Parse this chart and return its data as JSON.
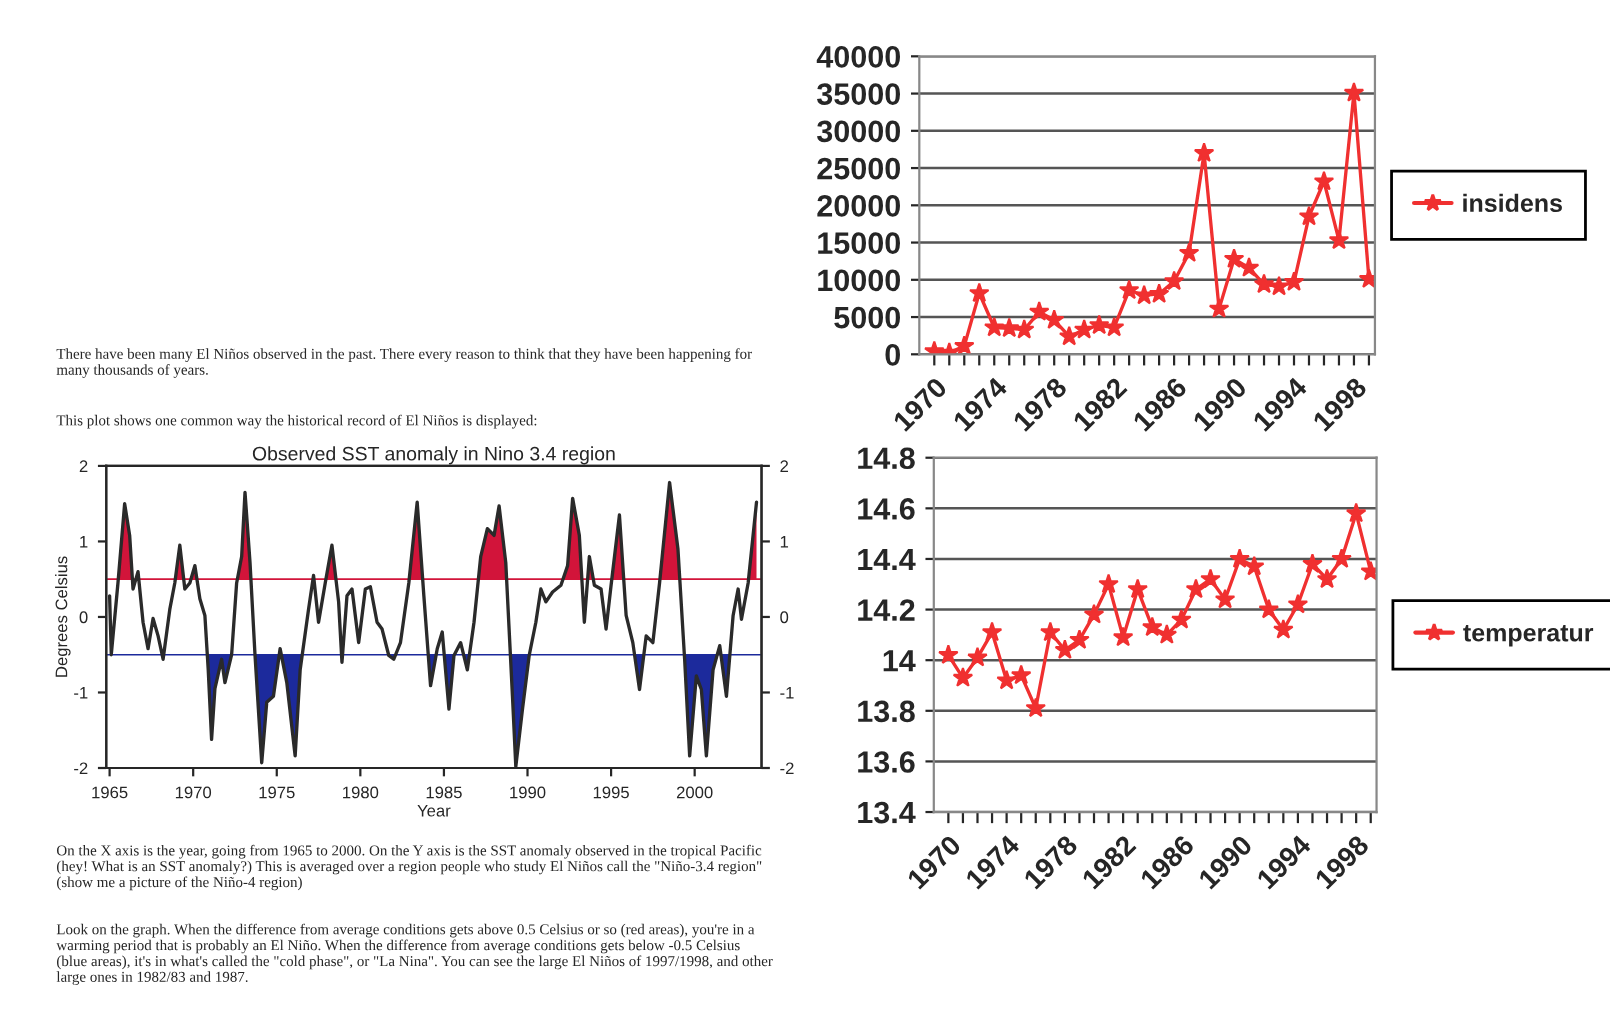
{
  "chart_data": [
    {
      "type": "line",
      "title": "Observed SST anomaly in Nino 3.4 region",
      "xlabel": "Year",
      "ylabel": "Degrees Celsius",
      "x": [
        1965.0,
        1965.1,
        1965.5,
        1965.9,
        1966.2,
        1966.4,
        1966.7,
        1967.0,
        1967.3,
        1967.6,
        1967.9,
        1968.2,
        1968.6,
        1968.9,
        1969.2,
        1969.5,
        1969.8,
        1970.1,
        1970.4,
        1970.7,
        1970.9,
        1971.1,
        1971.3,
        1971.7,
        1971.9,
        1972.3,
        1972.6,
        1972.9,
        1973.1,
        1973.4,
        1973.7,
        1974.1,
        1974.4,
        1974.8,
        1975.2,
        1975.6,
        1976.1,
        1976.4,
        1976.9,
        1977.2,
        1977.5,
        1977.9,
        1978.3,
        1978.7,
        1978.9,
        1979.2,
        1979.5,
        1979.9,
        1980.3,
        1980.6,
        1981.0,
        1981.3,
        1981.7,
        1982.0,
        1982.4,
        1982.9,
        1983.4,
        1983.8,
        1984.2,
        1984.6,
        1984.9,
        1985.3,
        1985.6,
        1986.0,
        1986.4,
        1986.8,
        1987.2,
        1987.6,
        1988.0,
        1988.3,
        1988.7,
        1989.1,
        1989.3,
        1989.7,
        1990.1,
        1990.5,
        1990.8,
        1991.1,
        1991.5,
        1992.0,
        1992.4,
        1992.7,
        1993.1,
        1993.4,
        1993.7,
        1994.0,
        1994.4,
        1994.7,
        1995.0,
        1995.5,
        1995.9,
        1996.3,
        1996.7,
        1997.1,
        1997.5,
        1997.9,
        1998.5,
        1999.0,
        1999.4,
        1999.7,
        2000.1,
        2000.4,
        2000.7,
        2001.1,
        2001.5,
        2001.9,
        2002.3,
        2002.6,
        2002.8,
        2003.2,
        2003.7
      ],
      "series": [
        {
          "color": "#2a2a2a",
          "values": [
            0.28,
            -0.5,
            0.45,
            1.5,
            1.08,
            0.37,
            0.6,
            -0.07,
            -0.42,
            -0.02,
            -0.25,
            -0.56,
            0.1,
            0.45,
            0.95,
            0.37,
            0.45,
            0.68,
            0.24,
            0.02,
            -0.7,
            -1.62,
            -0.95,
            -0.56,
            -0.87,
            -0.5,
            0.45,
            0.8,
            1.65,
            0.72,
            -0.51,
            -1.93,
            -1.13,
            -1.05,
            -0.42,
            -0.87,
            -1.84,
            -0.7,
            0.1,
            0.55,
            -0.07,
            0.45,
            0.95,
            0.2,
            -0.6,
            0.28,
            0.37,
            -0.34,
            0.37,
            0.4,
            -0.07,
            -0.16,
            -0.51,
            -0.56,
            -0.34,
            0.45,
            1.52,
            0.28,
            -0.91,
            -0.42,
            -0.2,
            -1.22,
            -0.51,
            -0.34,
            -0.7,
            -0.07,
            0.8,
            1.17,
            1.08,
            1.47,
            0.72,
            -1.05,
            -1.98,
            -1.22,
            -0.51,
            -0.07,
            0.37,
            0.2,
            0.33,
            0.42,
            0.68,
            1.57,
            1.08,
            -0.07,
            0.8,
            0.42,
            0.37,
            -0.16,
            0.42,
            1.35,
            0.02,
            -0.34,
            -0.96,
            -0.25,
            -0.34,
            0.45,
            1.78,
            0.9,
            -0.56,
            -1.84,
            -0.78,
            -0.96,
            -1.84,
            -0.7,
            -0.38,
            -1.05,
            0.02,
            0.37,
            -0.03,
            0.45,
            1.52
          ]
        }
      ],
      "xlim": [
        1964.8,
        2004
      ],
      "xticks": [
        1965,
        1970,
        1975,
        1980,
        1985,
        1990,
        1995,
        2000
      ],
      "ylim": [
        -2,
        2
      ],
      "yticks": [
        -2,
        -1,
        0,
        1,
        2
      ],
      "y2lim": [
        -2,
        2
      ],
      "y2ticks": [
        -2,
        -1,
        0,
        1,
        2
      ],
      "ref_lines": [
        {
          "axis": "y",
          "value": 0.5,
          "color": "#d2143a"
        },
        {
          "axis": "y",
          "value": -0.5,
          "color": "#1c2a9c"
        }
      ],
      "annotations": [
        "There have been many El Niños observed in the past. There every reason to think that they have been happening for many thousands of years.",
        "This plot shows one common way the historical record of El Niños is displayed:",
        "On the X axis is the year, going from 1965 to 2000. On the Y axis is the SST anomaly observed in the tropical Pacific (hey! What is an SST anomaly?) This is averaged over a region people who study El Niños call the \"Niño-3.4 region\" (show me a picture of the Niño-4 region)",
        "Look on the graph. When the difference from average conditions gets above 0.5 Celsius or so (red areas), you're in a warming period that is probably an El Niño. When the difference from average conditions gets below -0.5 Celsius (blue areas), it's in what's called the \"cold phase\", or \"La Nina\". You can see the large El Niños of 1997/1998, and other large ones in 1982/83 and 1987."
      ]
    },
    {
      "type": "line",
      "categories": [
        "1970",
        null,
        null,
        null,
        "1974",
        null,
        null,
        null,
        "1978",
        null,
        null,
        null,
        "1982",
        null,
        null,
        null,
        "1986",
        null,
        null,
        null,
        "1990",
        null,
        null,
        null,
        "1994",
        null,
        null,
        null,
        "1998",
        null
      ],
      "series": [
        {
          "name": "insidens",
          "color": "#f03030",
          "values": [
            400,
            200,
            1100,
            8200,
            3600,
            3500,
            3300,
            5700,
            4600,
            2400,
            3300,
            3900,
            3600,
            8600,
            7900,
            8100,
            9800,
            13600,
            27000,
            6100,
            12800,
            11600,
            9400,
            9100,
            9700,
            18500,
            23200,
            15300,
            35100,
            10100
          ]
        }
      ],
      "ylim": [
        0,
        40000
      ],
      "yticks": [
        0,
        5000,
        10000,
        15000,
        20000,
        25000,
        30000,
        35000,
        40000
      ],
      "grid": "y",
      "legend": "right",
      "marker": "star",
      "line_style": "solid"
    },
    {
      "type": "line",
      "categories": [
        "1970",
        null,
        null,
        null,
        "1974",
        null,
        null,
        null,
        "1978",
        null,
        null,
        null,
        "1982",
        null,
        null,
        null,
        "1986",
        null,
        null,
        null,
        "1990",
        null,
        null,
        null,
        "1994",
        null,
        null,
        null,
        "1998",
        null
      ],
      "series": [
        {
          "name": "temperatur",
          "color": "#f03030",
          "values": [
            14.02,
            13.93,
            14.01,
            14.11,
            13.92,
            13.94,
            13.81,
            14.11,
            14.04,
            14.08,
            14.18,
            14.3,
            14.09,
            14.28,
            14.13,
            14.1,
            14.16,
            14.28,
            14.32,
            14.24,
            14.4,
            14.37,
            14.2,
            14.12,
            14.22,
            14.38,
            14.32,
            14.4,
            14.58,
            14.35
          ]
        }
      ],
      "ylim": [
        13.4,
        14.8
      ],
      "yticks": [
        13.4,
        13.6,
        13.8,
        14,
        14.2,
        14.4,
        14.6,
        14.8
      ],
      "grid": "y",
      "legend": "right",
      "marker": "star",
      "line_style": "solid"
    }
  ]
}
